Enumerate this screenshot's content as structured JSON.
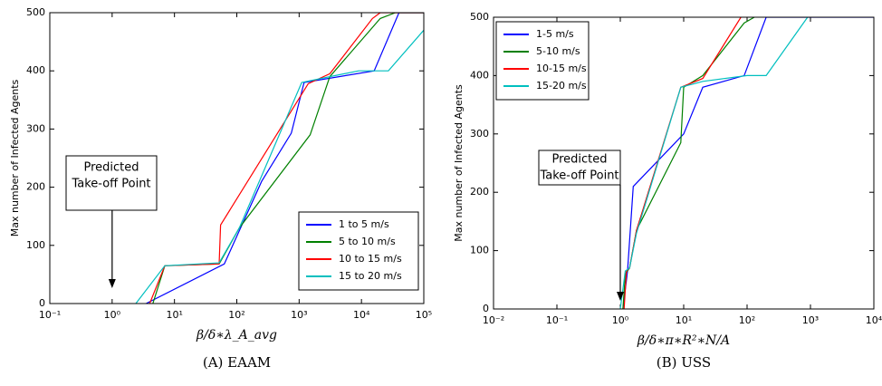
{
  "chart_data": [
    {
      "type": "line",
      "caption": "(A) EAAM",
      "xlabel": "β/δ∗λ_A_avg",
      "ylabel": "Max number of Infected Agents",
      "xscale": "log",
      "xlim": [
        0.1,
        100000
      ],
      "ylim": [
        0,
        500
      ],
      "xticks": [
        {
          "value": 0.1,
          "label": "10⁻¹"
        },
        {
          "value": 1,
          "label": "10⁰"
        },
        {
          "value": 10,
          "label": "10¹"
        },
        {
          "value": 100,
          "label": "10²"
        },
        {
          "value": 1000,
          "label": "10³"
        },
        {
          "value": 10000,
          "label": "10⁴"
        },
        {
          "value": 100000,
          "label": "10⁵"
        }
      ],
      "yticks": [
        0,
        100,
        200,
        300,
        400,
        500
      ],
      "legend": "lower right",
      "annotation": {
        "lines": [
          "Predicted",
          "Take-off Point"
        ],
        "x": 1
      },
      "series": [
        {
          "name": "1 to 5 m/s",
          "color": "#0000ff",
          "x": [
            3.5,
            63,
            250,
            750,
            1200,
            16000,
            40000,
            100000
          ],
          "values": [
            0,
            68,
            210,
            293,
            380,
            400,
            500,
            500
          ]
        },
        {
          "name": "5 to 10 m/s",
          "color": "#008000",
          "x": [
            4.5,
            7,
            52,
            110,
            1500,
            3100,
            20000,
            35000,
            100000
          ],
          "values": [
            0,
            65,
            68,
            130,
            290,
            390,
            490,
            500,
            500
          ]
        },
        {
          "name": "10 to 15 m/s",
          "color": "#ff0000",
          "x": [
            4,
            7,
            52,
            55,
            1400,
            3100,
            15000,
            20000,
            100000
          ],
          "values": [
            0,
            65,
            68,
            135,
            378,
            395,
            490,
            500,
            500
          ]
        },
        {
          "name": "15 to 20 m/s",
          "color": "#00bfbf",
          "x": [
            2.4,
            7,
            52,
            110,
            1100,
            3100,
            9000,
            27000,
            100000
          ],
          "values": [
            0,
            65,
            70,
            130,
            380,
            390,
            400,
            400,
            470
          ]
        }
      ]
    },
    {
      "type": "line",
      "caption": "(B) USS",
      "xlabel": "β/δ∗π∗R²∗N/A",
      "ylabel": "Max number of Infected Agents",
      "xscale": "log",
      "xlim": [
        0.01,
        10000
      ],
      "ylim": [
        0,
        500
      ],
      "xticks": [
        {
          "value": 0.01,
          "label": "10⁻²"
        },
        {
          "value": 0.1,
          "label": "10⁻¹"
        },
        {
          "value": 1,
          "label": "10⁰"
        },
        {
          "value": 10,
          "label": "10¹"
        },
        {
          "value": 100,
          "label": "10²"
        },
        {
          "value": 1000,
          "label": "10³"
        },
        {
          "value": 10000,
          "label": "10⁴"
        }
      ],
      "yticks": [
        0,
        100,
        200,
        300,
        400,
        500
      ],
      "legend": "upper left",
      "annotation": {
        "lines": [
          "Predicted",
          "Take-off Point"
        ],
        "x": 1
      },
      "series": [
        {
          "name": "1-5 m/s",
          "color": "#0000ff",
          "x": [
            1.1,
            1.3,
            1.6,
            10,
            20,
            90,
            200,
            10000
          ],
          "values": [
            0,
            65,
            210,
            300,
            380,
            400,
            500,
            500
          ]
        },
        {
          "name": "5-10 m/s",
          "color": "#008000",
          "x": [
            1.1,
            1.2,
            1.4,
            1.8,
            9,
            10,
            20,
            90,
            130
          ],
          "values": [
            0,
            60,
            70,
            135,
            285,
            380,
            400,
            490,
            500
          ]
        },
        {
          "name": "10-15 m/s",
          "color": "#ff0000",
          "x": [
            1.15,
            1.25,
            1.4,
            1.8,
            9,
            20,
            80
          ],
          "values": [
            0,
            65,
            70,
            135,
            380,
            395,
            500
          ]
        },
        {
          "name": "15-20 m/s",
          "color": "#00bfbf",
          "x": [
            1,
            1.2,
            1.4,
            1.8,
            9,
            20,
            100,
            200,
            900
          ],
          "values": [
            0,
            65,
            70,
            130,
            380,
            390,
            400,
            400,
            500
          ]
        }
      ]
    }
  ]
}
